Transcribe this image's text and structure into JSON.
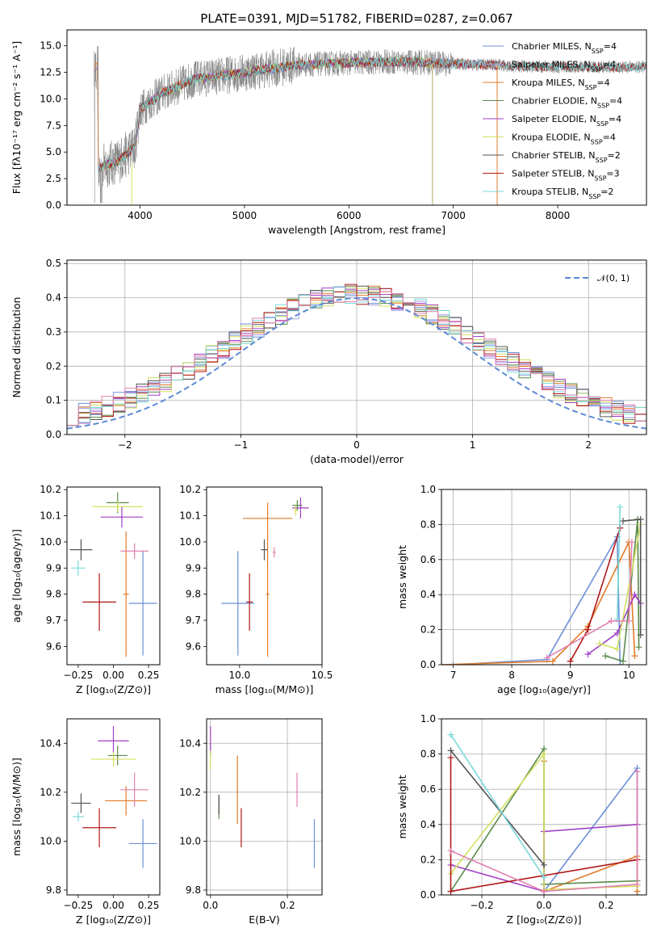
{
  "colors": {
    "chab_miles": "#6a8fd8",
    "salp_miles": "#9d9fe0",
    "krou_miles": "#e07b2a",
    "chab_elodie": "#5a8a4a",
    "salp_elodie": "#a23ec5",
    "krou_elodie": "#d4e060",
    "chab_stelib": "#555555",
    "salp_stelib": "#b01818",
    "krou_stelib": "#7cd8d8",
    "pink": "#e080b0",
    "data": "#808080",
    "normal": "#5b8ad6"
  },
  "chart_data": [
    {
      "id": "spectrum",
      "type": "line",
      "title": "PLATE=0391, MJD=51782, FIBERID=0287, z=0.067",
      "xlabel": "wavelength [Angstrom, rest frame]",
      "ylabel": "Flux [fλ10⁻¹⁷ erg cm⁻² s⁻¹ A⁻¹]",
      "xlim": [
        3300,
        8850
      ],
      "ylim": [
        0,
        16.5
      ],
      "xticks": [
        "4000",
        "5000",
        "6000",
        "7000",
        "8000"
      ],
      "yticks": [
        "0.0",
        "2.5",
        "5.0",
        "7.5",
        "10.0",
        "12.5",
        "15.0"
      ],
      "legend": [
        "Chabrier MILES, N_SSP=4",
        "Salpeter MILES, N_SSP=4",
        "Kroupa MILES, N_SSP=4",
        "Chabrier ELODIE, N_SSP=4",
        "Salpeter ELODIE, N_SSP=4",
        "Kroupa ELODIE, N_SSP=4",
        "Chabrier STELIB, N_SSP=2",
        "Salpeter STELIB, N_SSP=3",
        "Kroupa STELIB, N_SSP=2"
      ],
      "legend_placement": "top-right",
      "continuum_x": [
        3600,
        3800,
        3950,
        4000,
        4200,
        4500,
        5000,
        5500,
        6000,
        6500,
        7000,
        7400,
        7500,
        8000,
        8500,
        8800
      ],
      "continuum_y": [
        3.5,
        4.2,
        5.5,
        9.0,
        10.5,
        11.8,
        12.5,
        13.2,
        13.4,
        13.5,
        13.3,
        13.2,
        13.1,
        13.0,
        13.0,
        13.0
      ]
    },
    {
      "id": "residuals",
      "type": "line",
      "xlabel": "(data-model)/error",
      "ylabel": "Normed distribution",
      "xlim": [
        -2.5,
        2.5
      ],
      "ylim": [
        0,
        0.51
      ],
      "xticks": [
        "−2",
        "−1",
        "0",
        "1",
        "2"
      ],
      "yticks": [
        "0.0",
        "0.1",
        "0.2",
        "0.3",
        "0.4",
        "0.5"
      ],
      "grid": true,
      "legend": [
        "𝒩(0, 1)"
      ],
      "legend_placement": "top-right"
    },
    {
      "id": "age_vs_Z",
      "type": "scatter",
      "xlabel": "Z [log₁₀(Z/Z⊙)]",
      "ylabel": "age  [log₁₀(age/yr)]",
      "xlim": [
        -0.33,
        0.33
      ],
      "ylim": [
        9.53,
        10.21
      ],
      "xticks": [
        "−0.25",
        "0.00",
        "0.25"
      ],
      "yticks": [
        "9.6",
        "9.7",
        "9.8",
        "9.9",
        "10.0",
        "10.1",
        "10.2"
      ],
      "points": [
        {
          "c": "chab_miles",
          "x": 0.21,
          "xe": 0.1,
          "y": 9.765,
          "ye": 0.2
        },
        {
          "c": "krou_miles",
          "x": 0.09,
          "xe": 0.02,
          "y": 9.8,
          "ye": 0.24
        },
        {
          "c": "chab_elodie",
          "x": 0.03,
          "xe": 0.08,
          "y": 10.15,
          "ye": 0.04
        },
        {
          "c": "salp_elodie",
          "x": 0.06,
          "xe": 0.15,
          "y": 10.095,
          "ye": 0.04
        },
        {
          "c": "krou_elodie",
          "x": 0.03,
          "xe": 0.18,
          "y": 10.135,
          "ye": 0.02
        },
        {
          "c": "chab_stelib",
          "x": -0.23,
          "xe": 0.08,
          "y": 9.97,
          "ye": 0.04
        },
        {
          "c": "salp_stelib",
          "x": -0.1,
          "xe": 0.12,
          "y": 9.77,
          "ye": 0.11
        },
        {
          "c": "krou_stelib",
          "x": -0.25,
          "xe": 0.05,
          "y": 9.9,
          "ye": 0.03
        },
        {
          "c": "pink",
          "x": 0.15,
          "xe": 0.1,
          "y": 9.965,
          "ye": 0.03
        }
      ]
    },
    {
      "id": "age_vs_mass",
      "type": "scatter",
      "xlabel": "mass [log₁₀(M/M⊙)]",
      "xlim": [
        9.8,
        10.5
      ],
      "ylim": [
        9.53,
        10.21
      ],
      "xticks": [
        "10.0",
        "10.5"
      ],
      "yticks": [
        "9.6",
        "9.7",
        "9.8",
        "9.9",
        "10.0",
        "10.1",
        "10.2"
      ],
      "points": [
        {
          "c": "chab_miles",
          "x": 9.99,
          "xe": 0.1,
          "y": 9.765,
          "ye": 0.2
        },
        {
          "c": "krou_miles",
          "x": 10.17,
          "xe": 0.15,
          "y": 10.09,
          "ye": 0.06
        },
        {
          "c": "krou_miles",
          "x": 10.17,
          "xe": 0.01,
          "y": 9.8,
          "ye": 0.24
        },
        {
          "c": "chab_elodie",
          "x": 10.35,
          "xe": 0.03,
          "y": 10.14,
          "ye": 0.02
        },
        {
          "c": "salp_elodie",
          "x": 10.37,
          "xe": 0.05,
          "y": 10.13,
          "ye": 0.04
        },
        {
          "c": "krou_elodie",
          "x": 10.34,
          "xe": 0.01,
          "y": 10.12,
          "ye": 0.02
        },
        {
          "c": "chab_stelib",
          "x": 10.15,
          "xe": 0.02,
          "y": 9.97,
          "ye": 0.04
        },
        {
          "c": "salp_stelib",
          "x": 10.06,
          "xe": 0.02,
          "y": 9.77,
          "ye": 0.11
        },
        {
          "c": "pink",
          "x": 10.21,
          "xe": 0.01,
          "y": 9.96,
          "ye": 0.02
        }
      ]
    },
    {
      "id": "weight_vs_age",
      "type": "line",
      "xlabel": "age  [log₁₀(age/yr)]",
      "ylabel": "mass weight",
      "xlim": [
        6.8,
        10.3
      ],
      "ylim": [
        0,
        1.0
      ],
      "xticks": [
        "7",
        "8",
        "9",
        "10"
      ],
      "yticks": [
        "0.0",
        "0.2",
        "0.4",
        "0.6",
        "0.8",
        "1.0"
      ],
      "grid": true,
      "series": [
        {
          "c": "chab_miles",
          "x": [
            7.0,
            8.6,
            9.8,
            9.85
          ],
          "y": [
            0.0,
            0.03,
            0.73,
            0.0
          ]
        },
        {
          "c": "krou_miles",
          "x": [
            6.8,
            8.7,
            9.3,
            10.0,
            10.1
          ],
          "y": [
            0.0,
            0.02,
            0.22,
            0.7,
            0.05
          ]
        },
        {
          "c": "chab_elodie",
          "x": [
            9.6,
            9.9,
            10.15,
            10.17
          ],
          "y": [
            0.05,
            0.02,
            0.83,
            0.1
          ]
        },
        {
          "c": "salp_elodie",
          "x": [
            9.3,
            9.8,
            10.1,
            10.2
          ],
          "y": [
            0.06,
            0.18,
            0.4,
            0.35
          ]
        },
        {
          "c": "krou_elodie",
          "x": [
            9.5,
            9.8,
            10.2
          ],
          "y": [
            0.12,
            0.09,
            0.8
          ]
        },
        {
          "c": "chab_stelib",
          "x": [
            9.9,
            10.2,
            10.2
          ],
          "y": [
            0.82,
            0.83,
            0.17
          ]
        },
        {
          "c": "salp_stelib",
          "x": [
            9.0,
            9.3,
            9.85
          ],
          "y": [
            0.02,
            0.2,
            0.78
          ]
        },
        {
          "c": "krou_stelib",
          "x": [
            9.8,
            9.85
          ],
          "y": [
            0.26,
            0.9
          ]
        },
        {
          "c": "pink",
          "x": [
            8.6,
            9.7,
            10.0,
            10.05
          ],
          "y": [
            0.04,
            0.25,
            0.25,
            0.7
          ]
        }
      ]
    },
    {
      "id": "mass_vs_Z",
      "type": "scatter",
      "xlabel": "Z [log₁₀(Z/Z⊙)]",
      "ylabel": "mass [log₁₀(M/M⊙)]",
      "xlim": [
        -0.33,
        0.33
      ],
      "ylim": [
        9.78,
        10.5
      ],
      "xticks": [
        "−0.25",
        "0.00",
        "0.25"
      ],
      "yticks": [
        "9.8",
        "10.0",
        "10.2",
        "10.4"
      ],
      "points": [
        {
          "c": "chab_miles",
          "x": 0.21,
          "xe": 0.1,
          "y": 9.99,
          "ye": 0.1
        },
        {
          "c": "krou_miles",
          "x": 0.09,
          "xe": 0.15,
          "y": 10.165,
          "ye": 0.06
        },
        {
          "c": "chab_elodie",
          "x": 0.03,
          "xe": 0.07,
          "y": 10.35,
          "ye": 0.04
        },
        {
          "c": "salp_elodie",
          "x": 0.0,
          "xe": 0.11,
          "y": 10.41,
          "ye": 0.06
        },
        {
          "c": "krou_elodie",
          "x": 0.0,
          "xe": 0.16,
          "y": 10.335,
          "ye": 0.03
        },
        {
          "c": "chab_stelib",
          "x": -0.23,
          "xe": 0.07,
          "y": 10.155,
          "ye": 0.04
        },
        {
          "c": "salp_stelib",
          "x": -0.1,
          "xe": 0.12,
          "y": 10.055,
          "ye": 0.08
        },
        {
          "c": "krou_stelib",
          "x": -0.25,
          "xe": 0.04,
          "y": 10.1,
          "ye": 0.02
        },
        {
          "c": "pink",
          "x": 0.15,
          "xe": 0.1,
          "y": 10.21,
          "ye": 0.07
        }
      ]
    },
    {
      "id": "mass_vs_EBV",
      "type": "scatter",
      "xlabel": "E(B-V)",
      "xlim": [
        -0.01,
        0.29
      ],
      "ylim": [
        9.78,
        10.5
      ],
      "xticks": [
        "0.0",
        "0.2"
      ],
      "yticks": [
        "9.8",
        "10.0",
        "10.2",
        "10.4"
      ],
      "grid": true,
      "points": [
        {
          "c": "salp_elodie",
          "x": 0.0,
          "y": 10.41,
          "ye": 0.06
        },
        {
          "c": "krou_elodie",
          "x": 0.0,
          "y": 10.33,
          "ye": 0.04
        },
        {
          "c": "chab_elodie",
          "x": 0.022,
          "y": 10.14,
          "ye": 0.05
        },
        {
          "c": "chab_stelib",
          "x": 0.022,
          "y": 10.15,
          "ye": 0.04
        },
        {
          "c": "krou_miles",
          "x": 0.07,
          "y": 10.21,
          "ye": 0.14
        },
        {
          "c": "salp_stelib",
          "x": 0.08,
          "y": 10.055,
          "ye": 0.08
        },
        {
          "c": "pink",
          "x": 0.225,
          "y": 10.21,
          "ye": 0.07
        },
        {
          "c": "chab_miles",
          "x": 0.27,
          "y": 9.99,
          "ye": 0.1
        }
      ]
    },
    {
      "id": "weight_vs_Z",
      "type": "line",
      "xlabel": "Z [log₁₀(Z/Z⊙)]",
      "ylabel": "mass weight",
      "xlim": [
        -0.33,
        0.33
      ],
      "ylim": [
        0,
        1.0
      ],
      "xticks": [
        "−0.2",
        "0.0",
        "0.2"
      ],
      "yticks": [
        "0.0",
        "0.2",
        "0.4",
        "0.6",
        "0.8",
        "1.0"
      ],
      "grid": true,
      "series": [
        {
          "c": "chab_miles",
          "x": [
            0.0,
            0.3,
            0.3
          ],
          "y": [
            0.02,
            0.72,
            0.0
          ]
        },
        {
          "c": "krou_miles",
          "x": [
            0.0,
            0.0,
            0.3,
            0.3
          ],
          "y": [
            0.76,
            0.02,
            0.22,
            0.02
          ]
        },
        {
          "c": "chab_elodie",
          "x": [
            -0.3,
            0.0,
            0.0,
            0.3
          ],
          "y": [
            0.02,
            0.83,
            0.06,
            0.08
          ]
        },
        {
          "c": "salp_elodie",
          "x": [
            -0.3,
            0.0,
            0.0,
            0.3
          ],
          "y": [
            0.17,
            0.02,
            0.36,
            0.4
          ]
        },
        {
          "c": "krou_elodie",
          "x": [
            -0.3,
            0.0,
            0.0,
            0.3
          ],
          "y": [
            0.12,
            0.8,
            0.03,
            0.05
          ]
        },
        {
          "c": "chab_stelib",
          "x": [
            -0.3,
            0.0
          ],
          "y": [
            0.82,
            0.17
          ]
        },
        {
          "c": "salp_stelib",
          "x": [
            -0.3,
            -0.3,
            0.3
          ],
          "y": [
            0.78,
            0.02,
            0.2
          ]
        },
        {
          "c": "krou_stelib",
          "x": [
            -0.3,
            0.0
          ],
          "y": [
            0.91,
            0.1
          ]
        },
        {
          "c": "pink",
          "x": [
            -0.3,
            0.0,
            0.3,
            0.3
          ],
          "y": [
            0.25,
            0.02,
            0.06,
            0.7
          ]
        }
      ]
    }
  ]
}
